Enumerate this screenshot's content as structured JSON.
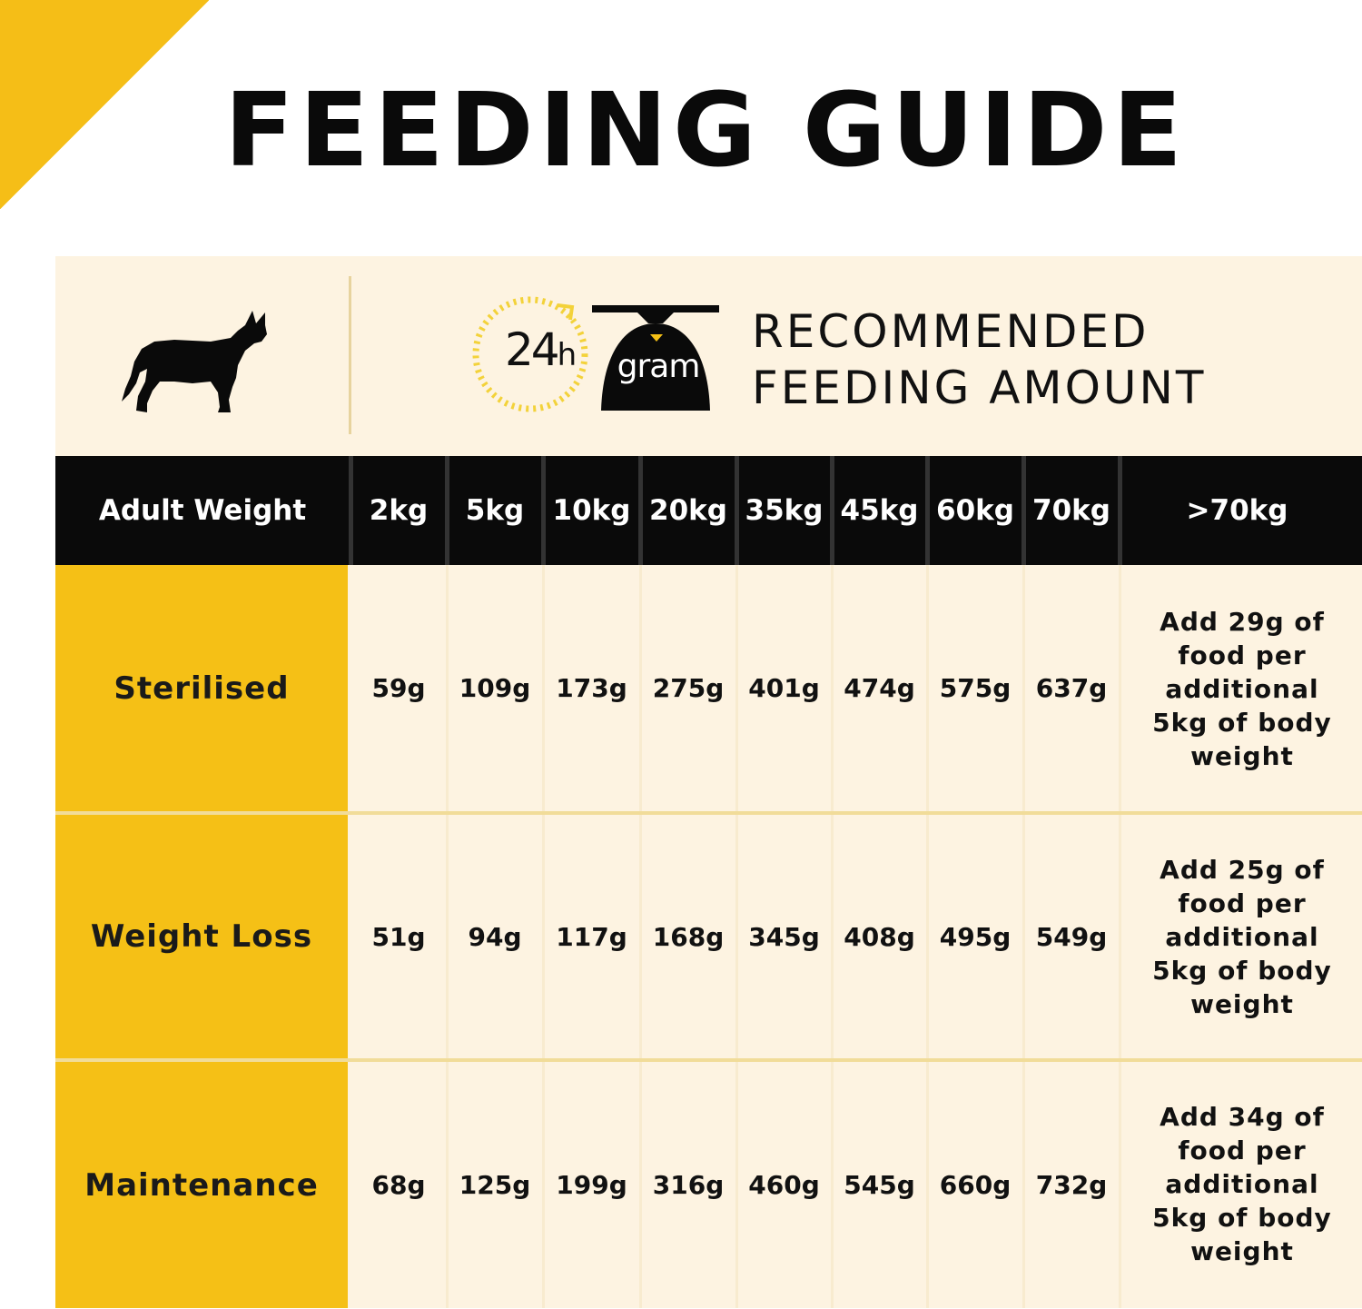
{
  "title": "FEEDING GUIDE",
  "header": {
    "clock_label": "24",
    "clock_unit": "h",
    "scale_label": "gram",
    "recommended_line1": "RECOMMENDED",
    "recommended_line2": "FEEDING AMOUNT"
  },
  "table": {
    "row_header": "Adult Weight",
    "weights": [
      "2kg",
      "5kg",
      "10kg",
      "20kg",
      "35kg",
      "45kg",
      "60kg",
      "70kg",
      ">70kg"
    ],
    "rows": [
      {
        "label": "Sterilised",
        "values": [
          "59g",
          "109g",
          "173g",
          "275g",
          "401g",
          "474g",
          "575g",
          "637g"
        ],
        "note": [
          "Add 29g of",
          "food per",
          "additional",
          "5kg of body",
          "weight"
        ]
      },
      {
        "label": "Weight Loss",
        "values": [
          "51g",
          "94g",
          "117g",
          "168g",
          "345g",
          "408g",
          "495g",
          "549g"
        ],
        "note": [
          "Add 25g of",
          "food per",
          "additional",
          "5kg of body",
          "weight"
        ]
      },
      {
        "label": "Maintenance",
        "values": [
          "68g",
          "125g",
          "199g",
          "316g",
          "460g",
          "545g",
          "660g",
          "732g"
        ],
        "note": [
          "Add 34g of",
          "food per",
          "additional",
          "5kg of body",
          "weight"
        ]
      }
    ]
  },
  "colors": {
    "accent_yellow": "#F5C016",
    "panel_cream": "#FDF3E1",
    "header_black": "#0a0a0a"
  },
  "icons": [
    "dog-icon",
    "clock-24h-icon",
    "scale-icon"
  ]
}
